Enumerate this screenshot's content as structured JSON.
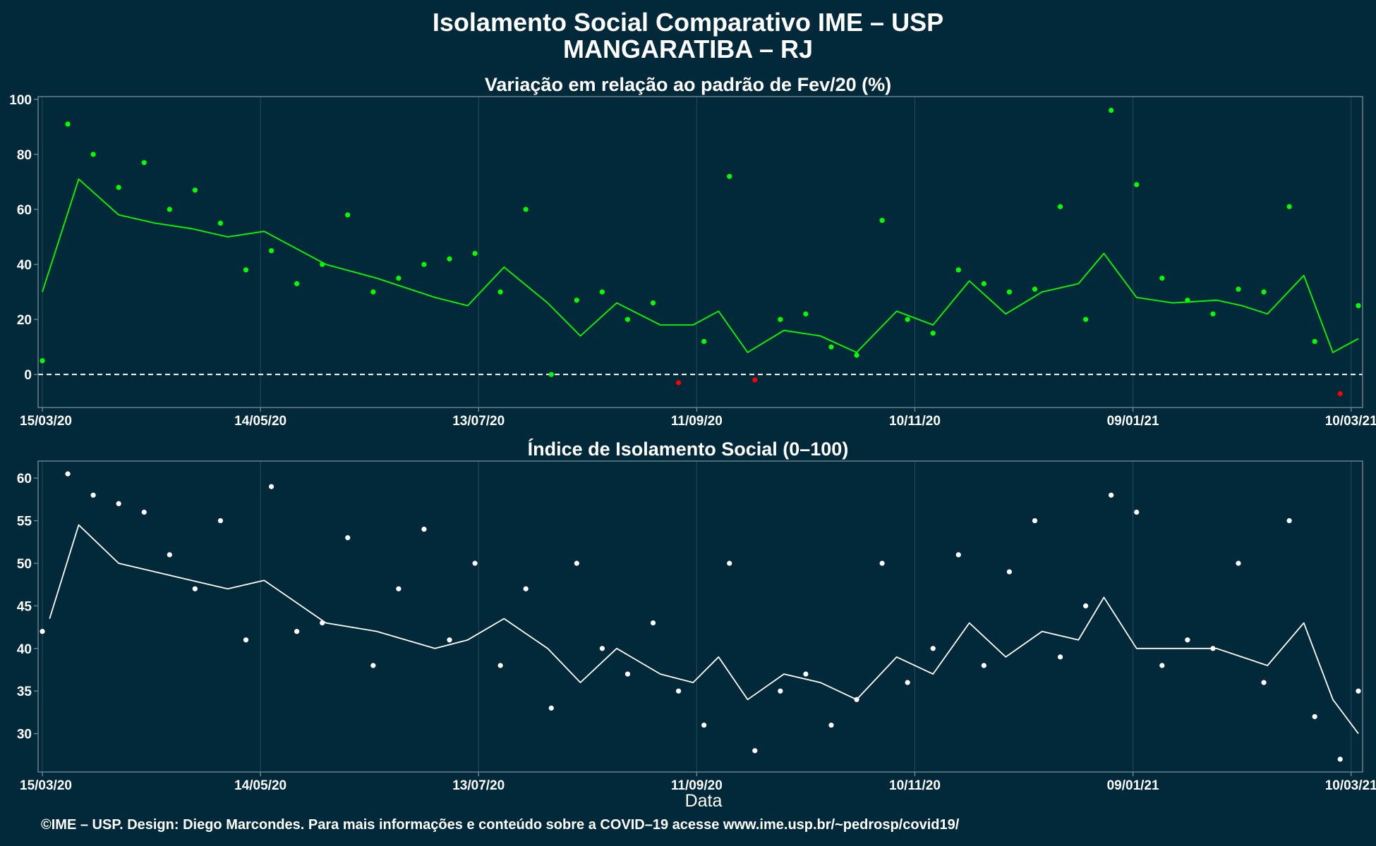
{
  "header": {
    "title": "Isolamento Social Comparativo IME – USP",
    "subtitle": "MANGARATIBA – RJ"
  },
  "footer": {
    "xlabel": "Data",
    "credit": "©IME – USP. Design: Diego Marcondes. Para mais informações e conteúdo sobre a COVID–19 acesse www.ime.usp.br/~pedrosp/covid19/"
  },
  "colors": {
    "background": "#02293a",
    "panel_border": "#6f8790",
    "grid": "#1d4655",
    "positive_points": "#00ff00",
    "negative_points": "#ff0000",
    "index_points": "#ffffff",
    "reference_line": "#ffffff"
  },
  "chart_data": [
    {
      "type": "scatter",
      "title": "Variação em relação ao padrão de Fev/20 (%)",
      "xlabel": "",
      "ylabel": "",
      "x_range": [
        "15/03/20",
        "12/03/21"
      ],
      "ylim": [
        -12,
        101
      ],
      "yticks": [
        0,
        20,
        40,
        60,
        80,
        100
      ],
      "xticks": [
        "15/03/20",
        "14/05/20",
        "13/07/20",
        "11/09/20",
        "10/11/20",
        "09/01/21",
        "10/03/21"
      ],
      "reference_line": {
        "y": 0,
        "style": "dashed"
      },
      "grid": "vertical",
      "series": [
        {
          "kind": "points",
          "color_rule": "green when value >= 0, red when value < 0",
          "dates": [
            "15/03/20",
            "22/03/20",
            "29/03/20",
            "05/04/20",
            "12/04/20",
            "19/04/20",
            "26/04/20",
            "03/05/20",
            "10/05/20",
            "17/05/20",
            "24/05/20",
            "31/05/20",
            "07/06/20",
            "14/06/20",
            "21/06/20",
            "28/06/20",
            "05/07/20",
            "12/07/20",
            "19/07/20",
            "26/07/20",
            "02/08/20",
            "09/08/20",
            "16/08/20",
            "23/08/20",
            "30/08/20",
            "06/09/20",
            "13/09/20",
            "20/09/20",
            "27/09/20",
            "04/10/20",
            "11/10/20",
            "18/10/20",
            "25/10/20",
            "01/11/20",
            "08/11/20",
            "15/11/20",
            "22/11/20",
            "29/11/20",
            "06/12/20",
            "13/12/20",
            "20/12/20",
            "27/12/20",
            "03/01/21",
            "10/01/21",
            "17/01/21",
            "24/01/21",
            "31/01/21",
            "07/02/21",
            "14/02/21",
            "21/02/21",
            "28/02/21",
            "07/03/21",
            "12/03/21"
          ],
          "values": [
            5,
            91,
            80,
            68,
            77,
            60,
            67,
            55,
            38,
            45,
            33,
            40,
            58,
            30,
            35,
            40,
            42,
            44,
            30,
            60,
            0,
            27,
            30,
            20,
            26,
            -3,
            12,
            72,
            -2,
            20,
            22,
            10,
            7,
            56,
            20,
            15,
            38,
            33,
            30,
            31,
            61,
            20,
            96,
            69,
            35,
            27,
            22,
            31,
            30,
            61,
            12,
            -7,
            25
          ]
        },
        {
          "kind": "line",
          "name": "",
          "color": "#00ff00",
          "dates": [
            "15/03/20",
            "25/03/20",
            "05/04/20",
            "15/04/20",
            "25/04/20",
            "05/05/20",
            "15/05/20",
            "01/06/20",
            "15/06/20",
            "01/07/20",
            "10/07/20",
            "20/07/20",
            "01/08/20",
            "10/08/20",
            "20/08/20",
            "01/09/20",
            "10/09/20",
            "17/09/20",
            "25/09/20",
            "05/10/20",
            "15/10/20",
            "25/10/20",
            "05/11/20",
            "15/11/20",
            "25/11/20",
            "05/12/20",
            "15/12/20",
            "25/12/20",
            "01/01/21",
            "10/01/21",
            "20/01/21",
            "01/02/21",
            "08/02/21",
            "15/02/21",
            "25/02/21",
            "05/03/21",
            "12/03/21"
          ],
          "values": [
            30,
            71,
            58,
            55,
            53,
            50,
            52,
            40,
            35,
            28,
            25,
            39,
            26,
            14,
            26,
            18,
            18,
            23,
            8,
            16,
            14,
            8,
            23,
            18,
            34,
            22,
            30,
            33,
            44,
            28,
            26,
            27,
            25,
            22,
            36,
            8,
            13
          ]
        }
      ]
    },
    {
      "type": "scatter",
      "title": "Índice de Isolamento Social (0–100)",
      "xlabel": "Data",
      "ylabel": "",
      "x_range": [
        "15/03/20",
        "12/03/21"
      ],
      "ylim": [
        25.5,
        62
      ],
      "yticks": [
        30,
        35,
        40,
        45,
        50,
        55,
        60
      ],
      "xticks": [
        "15/03/20",
        "14/05/20",
        "13/07/20",
        "11/09/20",
        "10/11/20",
        "09/01/21",
        "10/03/21"
      ],
      "grid": "vertical",
      "series": [
        {
          "kind": "points",
          "color": "#ffffff",
          "dates": [
            "15/03/20",
            "22/03/20",
            "29/03/20",
            "05/04/20",
            "12/04/20",
            "19/04/20",
            "26/04/20",
            "03/05/20",
            "10/05/20",
            "17/05/20",
            "24/05/20",
            "31/05/20",
            "07/06/20",
            "14/06/20",
            "21/06/20",
            "28/06/20",
            "05/07/20",
            "12/07/20",
            "19/07/20",
            "26/07/20",
            "02/08/20",
            "09/08/20",
            "16/08/20",
            "23/08/20",
            "30/08/20",
            "06/09/20",
            "13/09/20",
            "20/09/20",
            "27/09/20",
            "04/10/20",
            "11/10/20",
            "18/10/20",
            "25/10/20",
            "01/11/20",
            "08/11/20",
            "15/11/20",
            "22/11/20",
            "29/11/20",
            "06/12/20",
            "13/12/20",
            "20/12/20",
            "27/12/20",
            "03/01/21",
            "10/01/21",
            "17/01/21",
            "24/01/21",
            "31/01/21",
            "07/02/21",
            "14/02/21",
            "21/02/21",
            "28/02/21",
            "07/03/21",
            "12/03/21"
          ],
          "values": [
            42,
            60.5,
            58,
            57,
            56,
            51,
            47,
            55,
            41,
            59,
            42,
            43,
            53,
            38,
            47,
            54,
            41,
            50,
            38,
            47,
            33,
            50,
            40,
            37,
            43,
            35,
            31,
            50,
            28,
            35,
            37,
            31,
            34,
            50,
            36,
            40,
            51,
            38,
            49,
            55,
            39,
            45,
            58,
            56,
            38,
            41,
            40,
            50,
            36,
            55,
            32,
            27,
            35
          ]
        },
        {
          "kind": "line",
          "name": "",
          "color": "#ffffff",
          "dates": [
            "17/03/20",
            "25/03/20",
            "05/04/20",
            "15/04/20",
            "25/04/20",
            "05/05/20",
            "15/05/20",
            "01/06/20",
            "15/06/20",
            "01/07/20",
            "10/07/20",
            "20/07/20",
            "01/08/20",
            "10/08/20",
            "20/08/20",
            "01/09/20",
            "10/09/20",
            "17/09/20",
            "25/09/20",
            "05/10/20",
            "15/10/20",
            "25/10/20",
            "05/11/20",
            "15/11/20",
            "25/11/20",
            "05/12/20",
            "15/12/20",
            "25/12/20",
            "01/01/21",
            "10/01/21",
            "20/01/21",
            "01/02/21",
            "08/02/21",
            "15/02/21",
            "25/02/21",
            "05/03/21",
            "12/03/21"
          ],
          "values": [
            43.5,
            54.5,
            50,
            49,
            48,
            47,
            48,
            43,
            42,
            40,
            41,
            43.5,
            40,
            36,
            40,
            37,
            36,
            39,
            34,
            37,
            36,
            34,
            39,
            37,
            43,
            39,
            42,
            41,
            46,
            40,
            40,
            40,
            39,
            38,
            43,
            34,
            30
          ]
        }
      ]
    }
  ]
}
